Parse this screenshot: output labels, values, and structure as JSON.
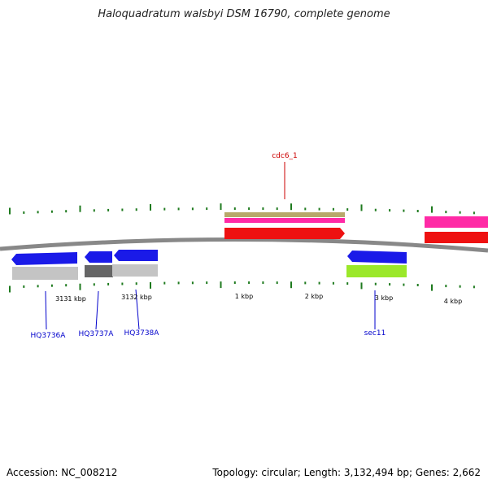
{
  "title": "Haloquadratum walsbyi DSM 16790, complete genome",
  "footer": {
    "accession": "Accession: NC_008212",
    "summary": "Topology: circular; Length: 3,132,494 bp; Genes: 2,662"
  },
  "colors": {
    "backbone": "#888888",
    "tick": "#1e7a1e",
    "gene_forward": "#ee1111",
    "gene_reverse": "#1a1ae8",
    "cds_forward": "#ff2aa6",
    "rrna_forward": "#b8a86a",
    "cds_reverse_gray": "#c4c4c4",
    "cds_reverse_dark": "#666666",
    "cds_reverse_green": "#9be82a",
    "label_forward": "#cc0000",
    "label_reverse": "#0000cc"
  },
  "scale_labels": [
    "3131 kbp",
    "3132 kbp",
    "1 kbp",
    "2 kbp",
    "3 kbp",
    "4 kbp"
  ],
  "gene_labels": {
    "forward": [
      "cdc6_1"
    ],
    "reverse": [
      "HQ3736A",
      "HQ3737A",
      "HQ3738A",
      "sec11"
    ]
  }
}
